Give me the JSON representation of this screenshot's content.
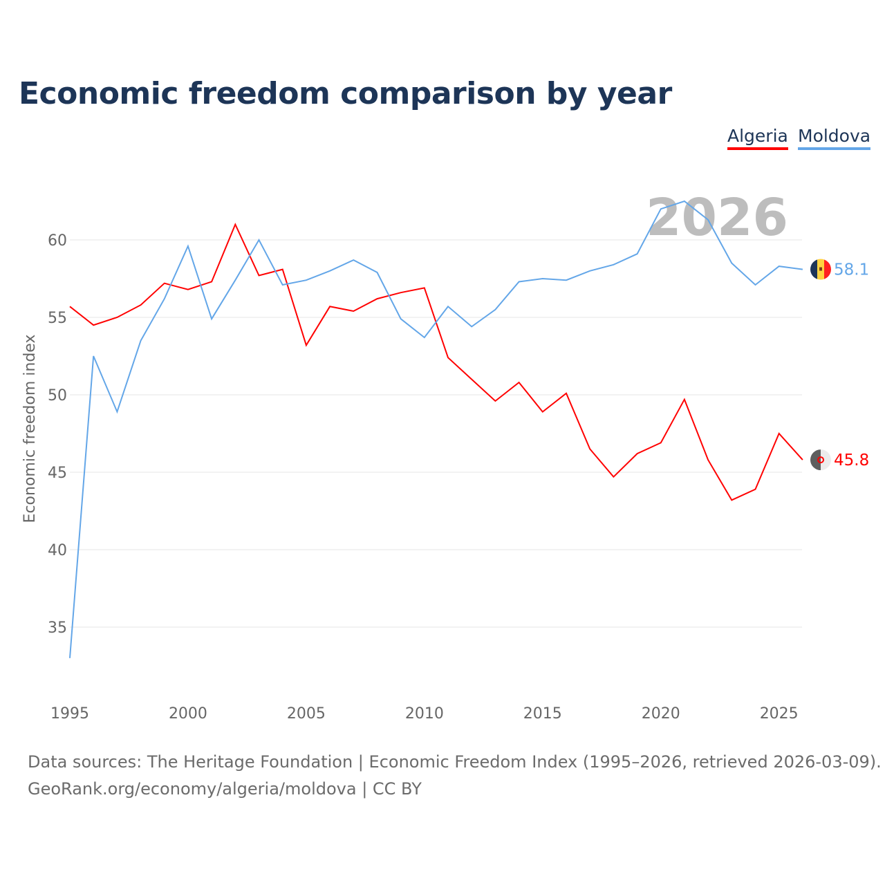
{
  "title": "Economic freedom comparison by year",
  "legend": [
    {
      "label": "Algeria",
      "color": "#ff0000"
    },
    {
      "label": "Moldova",
      "color": "#63a6e8"
    }
  ],
  "watermark_year": "2026",
  "source_line1": "Data sources: The Heritage Foundation | Economic Freedom Index (1995–2026, retrieved 2026-03-09).",
  "source_line2": "GeoRank.org/economy/algeria/moldova | CC BY",
  "chart_data": {
    "type": "line",
    "title": "Economic freedom comparison by year",
    "xlabel": "",
    "ylabel": "Economic freedom index",
    "x": [
      1995,
      1996,
      1997,
      1998,
      1999,
      2000,
      2001,
      2002,
      2003,
      2004,
      2005,
      2006,
      2007,
      2008,
      2009,
      2010,
      2011,
      2012,
      2013,
      2014,
      2015,
      2016,
      2017,
      2018,
      2019,
      2020,
      2021,
      2022,
      2023,
      2024,
      2025,
      2026
    ],
    "xticks": [
      "1995",
      "2000",
      "2005",
      "2010",
      "2015",
      "2020",
      "2025"
    ],
    "yticks": [
      "35",
      "40",
      "45",
      "50",
      "55",
      "60"
    ],
    "xlim": [
      1995,
      2026
    ],
    "ylim": [
      31,
      63
    ],
    "grid": true,
    "legend_placement": "top-right",
    "series": [
      {
        "name": "Algeria",
        "color": "#ff0000",
        "end_label": "45.8",
        "values": [
          55.7,
          54.5,
          55.0,
          55.8,
          57.2,
          56.8,
          57.3,
          61.0,
          57.7,
          58.1,
          53.2,
          55.7,
          55.4,
          56.2,
          56.6,
          56.9,
          52.4,
          51.0,
          49.6,
          50.8,
          48.9,
          50.1,
          46.5,
          44.7,
          46.2,
          46.9,
          49.7,
          45.8,
          43.2,
          43.9,
          47.5,
          45.8
        ]
      },
      {
        "name": "Moldova",
        "color": "#63a6e8",
        "end_label": "58.1",
        "values": [
          33.0,
          52.5,
          48.9,
          53.5,
          56.2,
          59.6,
          54.9,
          57.4,
          60.0,
          57.1,
          57.4,
          58.0,
          58.7,
          57.9,
          54.9,
          53.7,
          55.7,
          54.4,
          55.5,
          57.3,
          57.5,
          57.4,
          58.0,
          58.4,
          59.1,
          62.0,
          62.5,
          61.3,
          58.5,
          57.1,
          58.3,
          58.1
        ]
      }
    ]
  }
}
